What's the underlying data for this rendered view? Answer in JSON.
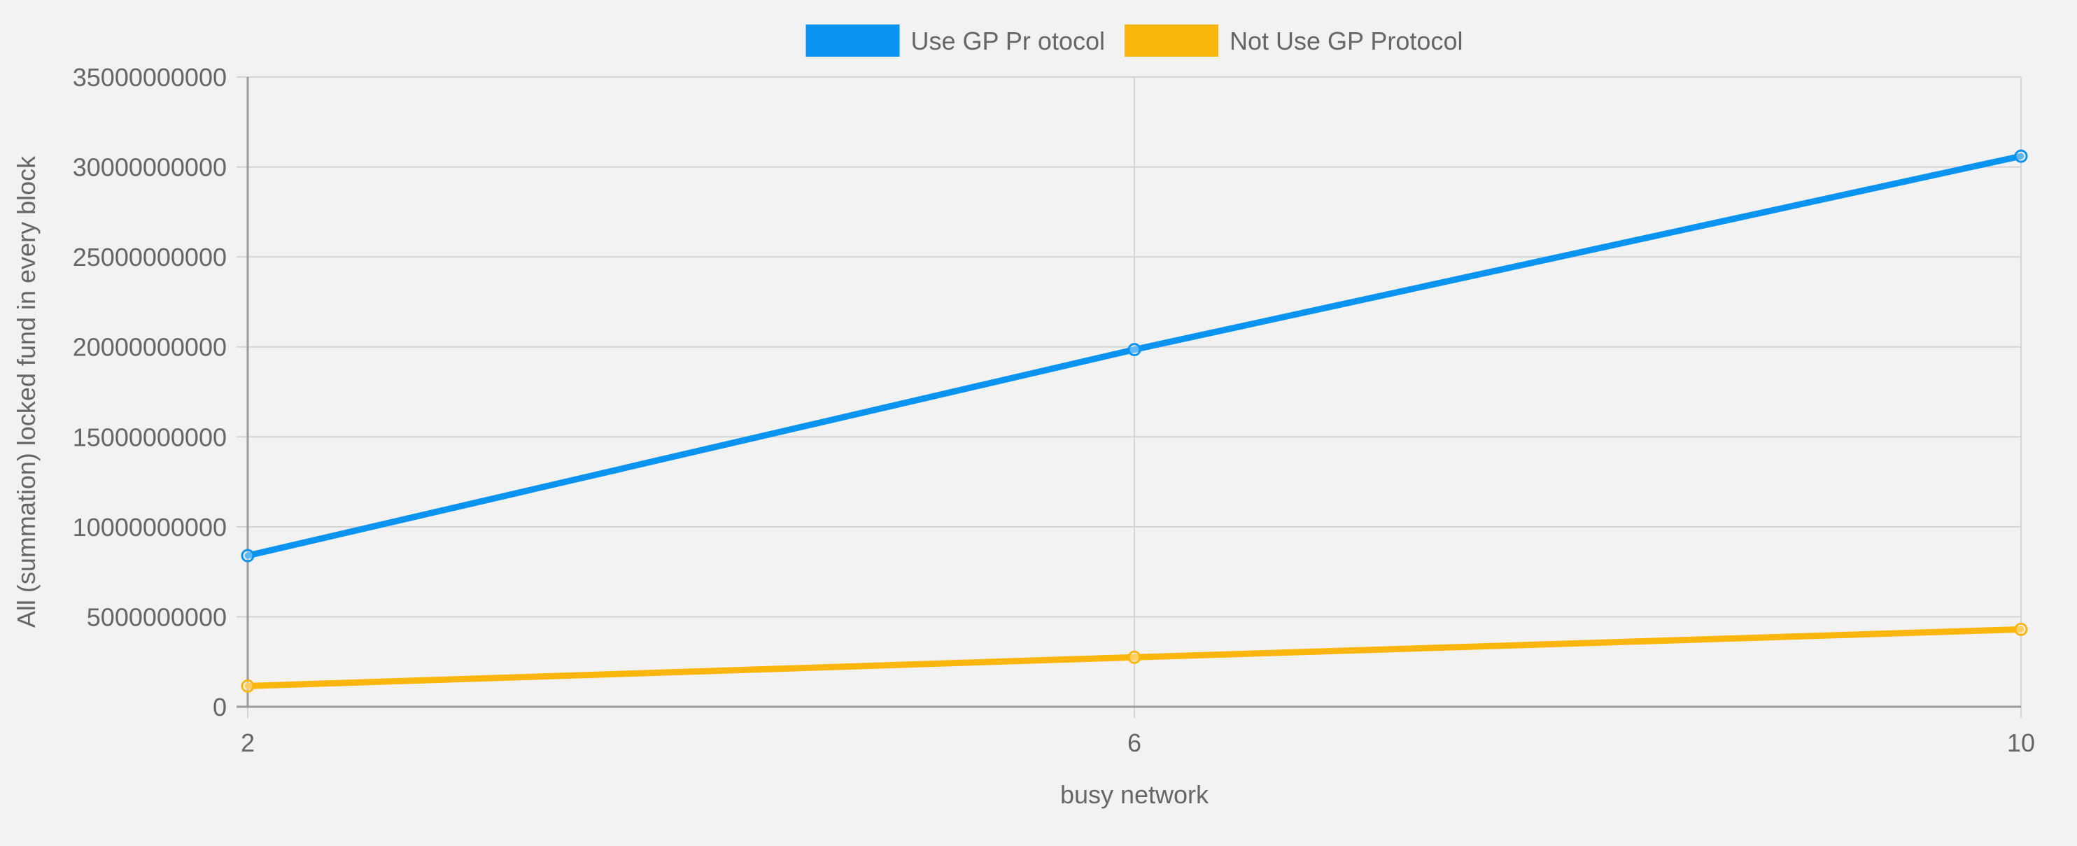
{
  "chart_data": {
    "type": "line",
    "title": "",
    "xlabel": "busy network",
    "ylabel": "All (summation) locked fund in every block",
    "x": [
      2,
      6,
      10
    ],
    "x_tick_labels": [
      "2",
      "6",
      "10"
    ],
    "ylim": [
      0,
      35000000000
    ],
    "y_ticks": [
      0,
      5000000000,
      10000000000,
      15000000000,
      20000000000,
      25000000000,
      30000000000,
      35000000000
    ],
    "y_tick_labels": [
      "0",
      "5000000000",
      "10000000000",
      "15000000000",
      "20000000000",
      "25000000000",
      "30000000000",
      "35000000000"
    ],
    "grid": true,
    "legend_position": "top-center",
    "series": [
      {
        "name": "Use GP Pr otocol",
        "color": "#0a94f2",
        "values": [
          8400000000,
          19850000000,
          30600000000
        ]
      },
      {
        "name": "Not Use GP Protocol",
        "color": "#fbb60d",
        "values": [
          1150000000,
          2750000000,
          4300000000
        ]
      }
    ]
  }
}
